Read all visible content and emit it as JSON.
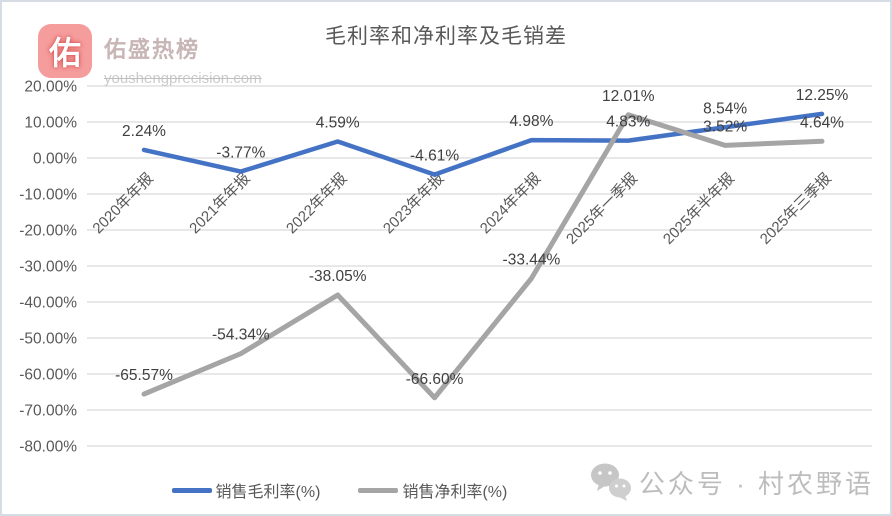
{
  "brand": {
    "logo_char": "佑",
    "name": "佑盛热榜",
    "domain": "youshengprecision.com",
    "logo_color": "#f59d9d"
  },
  "chart_data": {
    "type": "line",
    "title": "毛利率和净利率及毛销差",
    "categories": [
      "2020年年报",
      "2021年年报",
      "2022年年报",
      "2023年年报",
      "2024年年报",
      "2025年一季报",
      "2025年半年报",
      "2025年三季报"
    ],
    "series": [
      {
        "name": "销售毛利率(%)",
        "color": "#4472C4",
        "values": [
          2.24,
          -3.77,
          4.59,
          -4.61,
          4.98,
          4.83,
          8.54,
          12.25
        ],
        "labels": [
          "2.24%",
          "-3.77%",
          "4.59%",
          "-4.61%",
          "4.98%",
          "4.83%",
          "8.54%",
          "12.25%"
        ]
      },
      {
        "name": "销售净利率(%)",
        "color": "#A5A5A5",
        "values": [
          -65.57,
          -54.34,
          -38.05,
          -66.6,
          -33.44,
          12.01,
          3.52,
          4.64
        ],
        "labels": [
          "-65.57%",
          "-54.34%",
          "-38.05%",
          "-66.60%",
          "-33.44%",
          "12.01%",
          "3.52%",
          "4.64%"
        ]
      }
    ],
    "y_axis": {
      "min": -80,
      "max": 20,
      "step": 10,
      "ticks": [
        {
          "value": 20,
          "label": "20.00%"
        },
        {
          "value": 10,
          "label": "10.00%"
        },
        {
          "value": 0,
          "label": "0.00%"
        },
        {
          "value": -10,
          "label": "-10.00%"
        },
        {
          "value": -20,
          "label": "-20.00%"
        },
        {
          "value": -30,
          "label": "-30.00%"
        },
        {
          "value": -40,
          "label": "-40.00%"
        },
        {
          "value": -50,
          "label": "-50.00%"
        },
        {
          "value": -60,
          "label": "-60.00%"
        },
        {
          "value": -70,
          "label": "-70.00%"
        },
        {
          "value": -80,
          "label": "-80.00%"
        }
      ]
    },
    "grid": true,
    "legend_position": "bottom",
    "colors": {
      "gridline": "#D9D9D9",
      "axis_text": "#595959",
      "data_label_text": "#404040"
    }
  },
  "watermark": {
    "icon": "wechat-icon",
    "text": "公众号 · 村农野语"
  }
}
